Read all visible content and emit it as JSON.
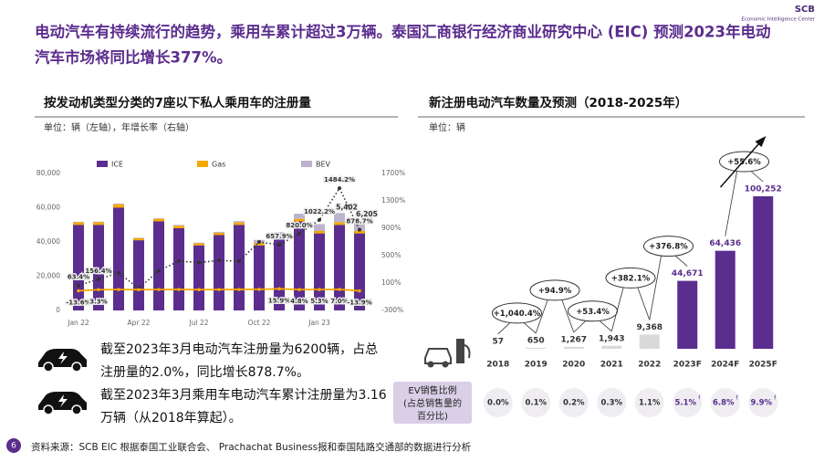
{
  "header": {
    "title_lines": [
      "电动汽车有持续流行的趋势，乘用车累计超过3万辆。泰国汇商银行经济商业研究中心 (EIC) 预测2023年电动",
      "汽车市场将同比增长377%。"
    ],
    "logo": "SCB",
    "logo_subtitle": "Economic Intelligence Center"
  },
  "chart_data": [
    {
      "type": "bar",
      "stacked": true,
      "title": "按发动机类型分类的7座以下私人乘用车的注册量",
      "subtitle": "单位：辆（左轴），年增长率（右轴）",
      "categories": [
        "Jan 22",
        null,
        null,
        "Apr 22",
        null,
        null,
        "Jul 22",
        null,
        null,
        "Oct 22",
        null,
        null,
        "Jan 23",
        null,
        null
      ],
      "series": [
        {
          "name": "ICE",
          "color": "#5b2d8e",
          "values": [
            50000,
            50000,
            60000,
            41000,
            52000,
            48000,
            38000,
            44000,
            50000,
            38000,
            42000,
            52000,
            45000,
            50000,
            45000
          ]
        },
        {
          "name": "Gas",
          "color": "#f5a800",
          "values": [
            1500,
            1500,
            2000,
            1200,
            1500,
            1500,
            1200,
            1300,
            1400,
            1200,
            1300,
            1500,
            1400,
            1500,
            1500
          ]
        },
        {
          "name": "BEV",
          "color": "#bdb3cc",
          "values": [
            300,
            400,
            500,
            300,
            400,
            500,
            400,
            600,
            800,
            2000,
            2500,
            3000,
            4000,
            5402,
            6205
          ],
          "value_labels": [
            null,
            null,
            null,
            null,
            null,
            null,
            null,
            null,
            null,
            null,
            null,
            null,
            null,
            "5,402",
            "6,205"
          ]
        }
      ],
      "lines": [
        {
          "axis": "y2",
          "color": "#333333",
          "dotted": true,
          "values": [
            63.4,
            156.4,
            250,
            20,
            280,
            420,
            400,
            430,
            420,
            700,
            657.9,
            820.0,
            1022.2,
            1484.2,
            878.7
          ],
          "value_labels": [
            "63.4%",
            "156.4%",
            null,
            null,
            null,
            null,
            null,
            null,
            null,
            null,
            "657.9%",
            "820.0%",
            "1022.2%",
            "1484.2%",
            "878.7%"
          ]
        },
        {
          "axis": "y2",
          "color": "#f5a800",
          "dotted": false,
          "values": [
            -13.6,
            3.3,
            5,
            4,
            5,
            6,
            4,
            5,
            6,
            8,
            15.9,
            4.8,
            5.3,
            7.0,
            -13.9
          ],
          "value_labels": [
            "-13.6%",
            "3.3%",
            null,
            null,
            null,
            null,
            null,
            null,
            null,
            null,
            "15.9%",
            "4.8%",
            "5.3%",
            "7.0%",
            "-13.9%"
          ]
        }
      ],
      "ylim": [
        0,
        80000
      ],
      "yticks": [
        0,
        {
          "value": 20000,
          "label": "20,000"
        },
        {
          "value": 40000,
          "label": "40,000"
        },
        {
          "value": 60000,
          "label": "60,000"
        },
        {
          "value": 80000,
          "label": "80,000"
        }
      ],
      "y2lim": [
        -300,
        1700
      ],
      "y2ticks": [
        {
          "value": -300,
          "label": "-300%"
        },
        {
          "value": 100,
          "label": "100%"
        },
        {
          "value": 500,
          "label": "500%"
        },
        {
          "value": 900,
          "label": "900%"
        },
        {
          "value": 1300,
          "label": "1300%"
        },
        {
          "value": 1700,
          "label": "1700%"
        }
      ],
      "grid": false
    },
    {
      "type": "bar",
      "title": "新注册电动汽车数量及预测（2018-2025年）",
      "subtitle": "单位：辆",
      "categories": [
        "2018",
        "2019",
        "2020",
        "2021",
        "2022",
        "2023F",
        "2024F",
        "2025F"
      ],
      "values": [
        57,
        650,
        1267,
        1943,
        9368,
        44671,
        64436,
        100252
      ],
      "value_labels": [
        "57",
        "650",
        "1,267",
        "1,943",
        "9,368",
        "44,671",
        "64,436",
        "100,252"
      ],
      "colors": [
        "#d9d9d9",
        "#d9d9d9",
        "#d9d9d9",
        "#d9d9d9",
        "#d9d9d9",
        "#5b2d8e",
        "#5b2d8e",
        "#5b2d8e"
      ],
      "growth": [
        null,
        1040.4,
        94.9,
        53.4,
        382.1,
        376.8,
        null,
        55.6
      ],
      "growth_labels": [
        null,
        "+1,040.4%",
        "+94.9%",
        "+53.4%",
        "+382.1%",
        "+376.8%",
        null,
        "+55.6%"
      ]
    }
  ],
  "ev_share": {
    "label_lines": [
      "EV销售比例",
      "(占总销售量的",
      "百分比)"
    ],
    "values": [
      0.0,
      0.1,
      0.2,
      0.3,
      1.1,
      5.1,
      6.8,
      9.9
    ],
    "value_labels": [
      "0.0%",
      "0.1%",
      "0.2%",
      "0.3%",
      "1.1%",
      "5.1%",
      "6.8%",
      "9.9%"
    ],
    "forecast": [
      false,
      false,
      false,
      false,
      false,
      true,
      true,
      true
    ],
    "forecast_mark": "f"
  },
  "notes": [
    {
      "lines": [
        "截至2023年3月电动汽车注册量为6200辆，占总",
        "注册量的2.0%，同比增长878.7%。"
      ]
    },
    {
      "lines": [
        "截至2023年3月乘用车电动汽车累计注册量为3.16",
        "万辆（从2018年算起）。"
      ]
    }
  ],
  "footer": {
    "page": "6",
    "source": "资料来源：SCB EIC 根据泰国工业联合会、 Prachachat Business报和泰国陆路交通部的数据进行分析"
  }
}
